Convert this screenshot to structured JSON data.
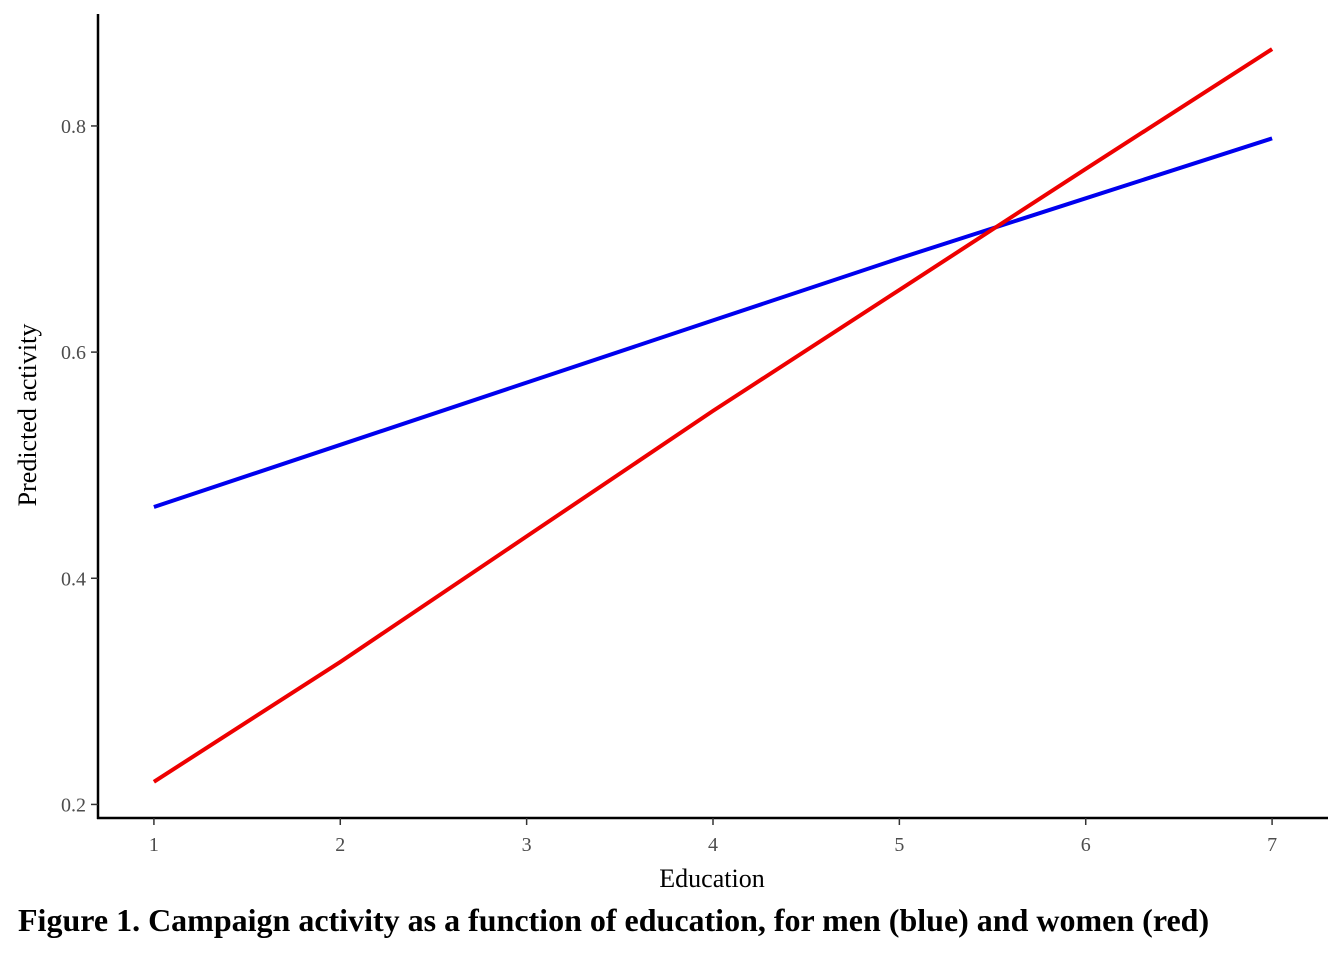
{
  "chart_data": {
    "type": "line",
    "title": "",
    "xlabel": "Education",
    "ylabel": "Predicted activity",
    "xlim": [
      0.7,
      7.3
    ],
    "ylim": [
      0.188,
      0.899
    ],
    "x_ticks": [
      1,
      2,
      3,
      4,
      5,
      6,
      7
    ],
    "y_ticks": [
      0.2,
      0.4,
      0.6,
      0.8
    ],
    "x_tick_labels": [
      "1",
      "2",
      "3",
      "4",
      "5",
      "6",
      "7"
    ],
    "y_tick_labels": [
      "0.2",
      "0.4",
      "0.6",
      "0.8"
    ],
    "grid": false,
    "legend": "none",
    "series": [
      {
        "color": "#0000ee",
        "x": [
          1,
          2,
          3,
          4,
          5,
          6,
          7
        ],
        "y": [
          0.463,
          0.518,
          0.573,
          0.628,
          0.683,
          0.736,
          0.789
        ]
      },
      {
        "color": "#ee0000",
        "x": [
          1,
          2,
          3,
          4,
          5,
          6,
          7
        ],
        "y": [
          0.22,
          0.326,
          0.437,
          0.548,
          0.655,
          0.762,
          0.868
        ]
      }
    ]
  },
  "caption": "Figure 1. Campaign activity as a function of education, for men (blue) and women (red)"
}
